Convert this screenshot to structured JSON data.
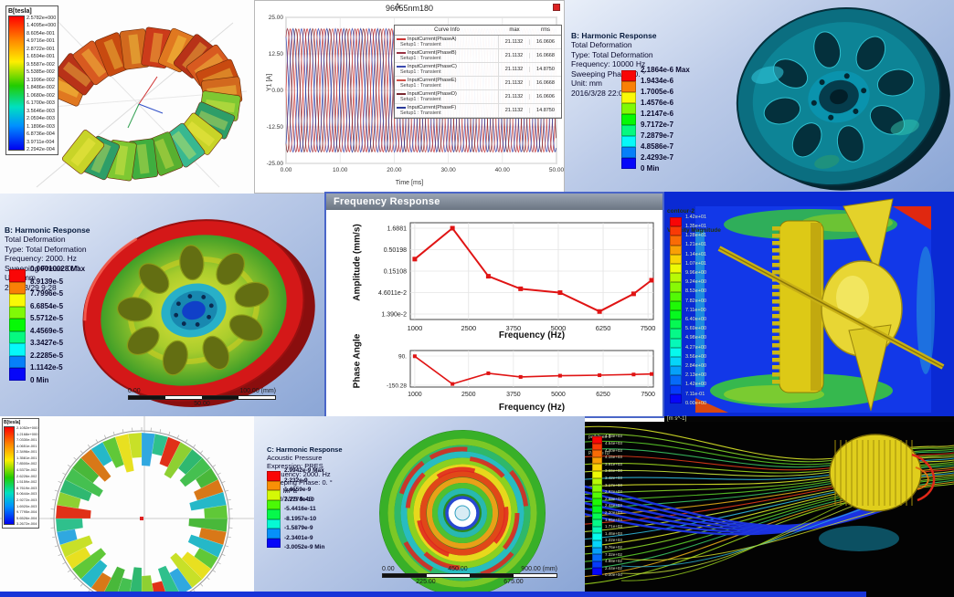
{
  "panels": {
    "maxwell_coil": {
      "colorbar_title": "B[tesla]",
      "colorbar_labels": [
        "2.5782e+000",
        "1.4095e+000",
        "8.6054e-001",
        "4.9716e-001",
        "2.8722e-001",
        "1.6594e-001",
        "9.5587e-002",
        "5.5385e-002",
        "3.1996e-002",
        "1.8486e-002",
        "1.0680e-002",
        "6.1700e-003",
        "3.5646e-003",
        "2.0594e-003",
        "1.1896e-003",
        "6.8736e-004",
        "3.9711e-004",
        "2.2942e-004"
      ]
    },
    "transient_plot": {
      "window_label": "A",
      "title": "96v55nm180",
      "legend_header": {
        "info": "Curve Info",
        "max": "max",
        "rms": "rms"
      }
    },
    "harmonic_10000": {
      "lines": [
        "B: Harmonic Response",
        "Total Deformation",
        "Type: Total Deformation",
        "Frequency: 10000 Hz",
        "Sweeping Phase: 0. °",
        "Unit: mm",
        "2016/3/28 22:09"
      ],
      "colorbar_labels": [
        "2.1864e-6 Max",
        "1.9434e-6",
        "1.7005e-6",
        "1.4576e-6",
        "1.2147e-6",
        "9.7172e-7",
        "7.2879e-7",
        "4.8586e-7",
        "2.4293e-7",
        "0 Min"
      ]
    },
    "harmonic_2000": {
      "lines": [
        "B: Harmonic Response",
        "Total Deformation",
        "Type: Total Deformation",
        "Frequency: 2000. Hz",
        "Sweeping Phase: 0. °",
        "Unit: mm",
        "2018/3/29 9:28"
      ],
      "colorbar_labels": [
        "0.00010028 Max",
        "8.9139e-5",
        "7.7996e-5",
        "6.6854e-5",
        "5.5712e-5",
        "4.4569e-5",
        "3.3427e-5",
        "2.2285e-5",
        "1.1142e-5",
        "0 Min"
      ],
      "ruler_above": [
        "0.00",
        "100.00 (mm)"
      ],
      "ruler_below": [
        "50.00"
      ]
    },
    "freq_response": {
      "window_title": "Frequency Response"
    },
    "cfd_contour": {
      "colorbar_title_1": "contour-2",
      "colorbar_title_2": "Velocity Magnitude",
      "colorbar_unit": "[m s^-1]",
      "colorbar_labels": [
        "1.42e+01",
        "1.35e+01",
        "1.28e+01",
        "1.21e+01",
        "1.14e+01",
        "1.07e+01",
        "9.96e+00",
        "9.24e+00",
        "8.53e+00",
        "7.82e+00",
        "7.11e+00",
        "6.40e+00",
        "5.69e+00",
        "4.98e+00",
        "4.27e+00",
        "3.56e+00",
        "2.84e+00",
        "2.13e+00",
        "1.42e+00",
        "7.11e-01",
        "0.00e+00"
      ]
    },
    "maxwell_ring": {
      "colorbar_title": "B[tesla]",
      "colorbar_labels": [
        "2.1052e+000",
        "1.2168e+000",
        "7.0330e-001",
        "4.0651e-001",
        "2.3496e-001",
        "1.3581e-001",
        "7.8500e-002",
        "4.5373e-002",
        "2.6226e-002",
        "1.5159e-002",
        "8.7619e-003",
        "5.0644e-003",
        "2.9272e-003",
        "1.6920e-003",
        "9.7795e-004",
        "5.6526e-004",
        "3.2672e-004"
      ]
    },
    "harmonic_acoustic": {
      "lines": [
        "C: Harmonic Response",
        "Acoustic Pressure",
        "Expression: PRES",
        "Frequency: 2000. Hz",
        "Sweeping Phase: 0. °",
        "Unit: MPa",
        "2018/3/29 9:43"
      ],
      "colorbar_labels": [
        "2.9942e-9 Max",
        "2.232e-9",
        "1.4659e-9",
        "7.2774e-10",
        "-5.4416e-11",
        "-8.1957e-10",
        "-1.5879e-9",
        "-2.3401e-9",
        "-3.0052e-9 Min"
      ],
      "ruler_above": [
        "0.00",
        "450.00",
        "900.00 (mm)"
      ],
      "ruler_below": [
        "225.00",
        "675.00"
      ]
    },
    "streamlines": {
      "colorbar_title_1": "pathlines-1",
      "colorbar_title_2": "Particle ID",
      "colorbar_labels": [
        "4.88e+03",
        "4.64e+03",
        "4.40e+03",
        "4.15e+03",
        "3.91e+03",
        "3.66e+03",
        "3.42e+03",
        "3.17e+03",
        "2.93e+03",
        "2.69e+03",
        "2.44e+03",
        "2.20e+03",
        "1.95e+03",
        "1.71e+03",
        "1.46e+03",
        "1.22e+03",
        "9.76e+02",
        "7.32e+02",
        "4.88e+02",
        "2.44e+02",
        "0.00e+00"
      ]
    }
  },
  "chart_data": [
    {
      "type": "line",
      "title": "96v55nm180",
      "xlabel": "Time [ms]",
      "ylabel": "Y1 [A]",
      "xlim": [
        0,
        50
      ],
      "ylim": [
        -25,
        25
      ],
      "x_ticks": [
        "0.00",
        "10.00",
        "20.00",
        "30.00",
        "40.00",
        "50.00"
      ],
      "y_ticks": [
        "25.00",
        "12.50",
        "0.00",
        "-12.50",
        "-25.00"
      ],
      "grid": true,
      "legend_position": "top-right",
      "series": [
        {
          "name": "InputCurrent(PhaseA)",
          "setup": "Setup1 : Transient",
          "max": "21.1132",
          "rms": "16.0606",
          "amplitude": 21.1132,
          "cycles": 16,
          "phase_deg": 0,
          "color": "#cc3333"
        },
        {
          "name": "InputCurrent(PhaseB)",
          "setup": "Setup1 : Transient",
          "max": "21.1132",
          "rms": "16.0668",
          "amplitude": 21.1132,
          "cycles": 16,
          "phase_deg": 60,
          "color": "#993344"
        },
        {
          "name": "InputCurrent(PhaseC)",
          "setup": "Setup1 : Transient",
          "max": "21.1132",
          "rms": "14.8750",
          "amplitude": 21.1132,
          "cycles": 16,
          "phase_deg": 120,
          "color": "#3a4ab0"
        },
        {
          "name": "InputCurrent(PhaseE)",
          "setup": "Setup1 : Transient",
          "max": "21.1132",
          "rms": "16.0668",
          "amplitude": 21.1132,
          "cycles": 16,
          "phase_deg": 180,
          "color": "#d0524a"
        },
        {
          "name": "InputCurrent(PhaseD)",
          "setup": "Setup1 : Transient",
          "max": "21.1132",
          "rms": "16.0606",
          "amplitude": 21.1132,
          "cycles": 16,
          "phase_deg": 240,
          "color": "#7a2830"
        },
        {
          "name": "InputCurrent(PhaseF)",
          "setup": "Setup1 : Transient",
          "max": "21.1132",
          "rms": "14.8750",
          "amplitude": 21.1132,
          "cycles": 16,
          "phase_deg": 300,
          "color": "#2a3a9a"
        }
      ]
    },
    {
      "type": "line",
      "title": "Frequency Response - Amplitude",
      "xlabel": "Frequency (Hz)",
      "ylabel": "Amplitude (mm/s)",
      "y_scale": "log",
      "x_ticks": [
        "1000",
        "2500",
        "3750",
        "5000",
        "6250",
        "7500"
      ],
      "y_ticks": [
        "1.6881",
        "0.50198",
        "0.15108",
        "4.6011e-2",
        "1.390e-2"
      ],
      "line_color": "#e01414",
      "marker": "square",
      "points": [
        [
          1000,
          0.3
        ],
        [
          2050,
          1.6881
        ],
        [
          3050,
          0.115
        ],
        [
          3950,
          0.057
        ],
        [
          5050,
          0.046
        ],
        [
          6150,
          0.016
        ],
        [
          7100,
          0.043
        ],
        [
          7600,
          0.092
        ]
      ]
    },
    {
      "type": "line",
      "title": "Frequency Response - Phase",
      "xlabel": "Frequency (Hz)",
      "ylabel": "Phase Angle",
      "ylim": [
        -170,
        100
      ],
      "x_ticks": [
        "1000",
        "2500",
        "3750",
        "5000",
        "6250",
        "7500"
      ],
      "y_ticks": [
        "90.",
        "-150.28"
      ],
      "line_color": "#e01414",
      "marker": "square",
      "points": [
        [
          1000,
          88
        ],
        [
          2050,
          -140
        ],
        [
          3050,
          -52
        ],
        [
          3950,
          -82
        ],
        [
          5050,
          -72
        ],
        [
          6150,
          -68
        ],
        [
          7100,
          -62
        ],
        [
          7600,
          -58
        ]
      ]
    }
  ]
}
